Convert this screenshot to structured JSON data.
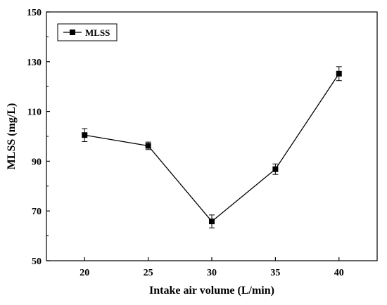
{
  "chart_data": {
    "type": "line",
    "xlabel": "Intake air volume (L/min)",
    "ylabel": "MLSS (mg/L)",
    "xlim": [
      17,
      43
    ],
    "ylim": [
      50,
      150
    ],
    "x_ticks": [
      "20",
      "25",
      "30",
      "35",
      "40"
    ],
    "y_ticks": [
      "50",
      "70",
      "90",
      "110",
      "130",
      "150"
    ],
    "legend_position": "top-left",
    "grid": false,
    "series": [
      {
        "name": "MLSS",
        "color": "#000000",
        "marker": "square",
        "x": [
          20,
          25,
          30,
          35,
          40
        ],
        "y": [
          100.5,
          96.2,
          65.8,
          86.8,
          125.2
        ],
        "error": [
          2.6,
          1.5,
          2.6,
          2.1,
          2.8
        ]
      }
    ]
  }
}
